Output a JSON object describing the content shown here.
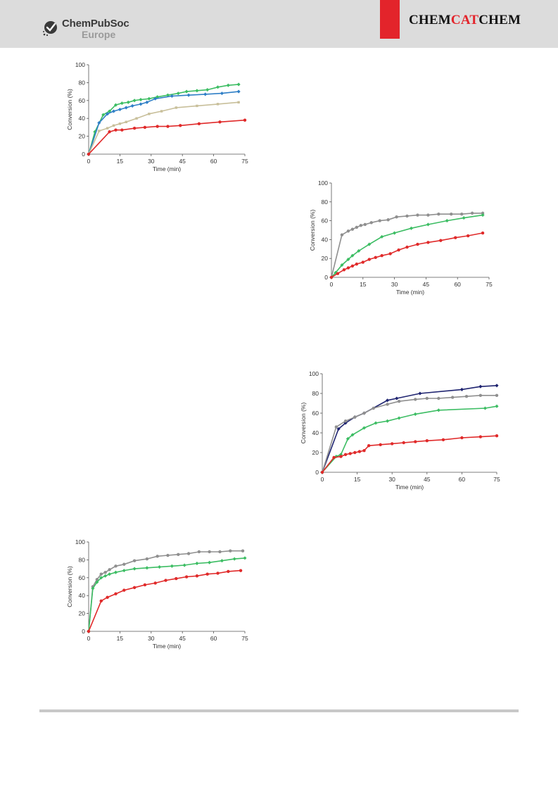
{
  "header": {
    "publisher_name": "ChemPubSoc",
    "publisher_region": "Europe",
    "journal_part1": "CHEM",
    "journal_part2": "CAT",
    "journal_part3": "CHEM"
  },
  "colors": {
    "red": "#e02a2a",
    "green": "#3cbd63",
    "blue": "#2f7fc6",
    "tan": "#c8bf9a",
    "gray": "#8f8f8f",
    "navy": "#1f2470",
    "accent_red": "#e3242b"
  },
  "chart_data": [
    {
      "type": "line",
      "xlabel": "Time (min)",
      "ylabel": "Conversion (%)",
      "xlim": [
        0,
        75
      ],
      "ylim": [
        0,
        100
      ],
      "xticks": [
        0,
        15,
        30,
        45,
        60,
        75
      ],
      "yticks": [
        0,
        20,
        40,
        60,
        80,
        100
      ],
      "grid": false,
      "series": [
        {
          "color": "#3cbd63",
          "marker": "diamond",
          "points": [
            [
              0,
              0
            ],
            [
              3,
              25
            ],
            [
              7,
              44
            ],
            [
              10,
              48
            ],
            [
              13,
              55
            ],
            [
              16,
              57
            ],
            [
              19,
              58
            ],
            [
              22,
              60
            ],
            [
              25,
              61
            ],
            [
              29,
              62
            ],
            [
              33,
              64
            ],
            [
              38,
              66
            ],
            [
              43,
              68
            ],
            [
              47,
              70
            ],
            [
              52,
              71
            ],
            [
              57,
              72
            ],
            [
              62,
              75
            ],
            [
              67,
              77
            ],
            [
              72,
              78
            ]
          ]
        },
        {
          "color": "#2f7fc6",
          "marker": "diamond",
          "points": [
            [
              0,
              0
            ],
            [
              5,
              35
            ],
            [
              9,
              45
            ],
            [
              12,
              48
            ],
            [
              15,
              50
            ],
            [
              18,
              52
            ],
            [
              21,
              54
            ],
            [
              25,
              56
            ],
            [
              28,
              58
            ],
            [
              32,
              62
            ],
            [
              40,
              65
            ],
            [
              48,
              66
            ],
            [
              56,
              67
            ],
            [
              64,
              68
            ],
            [
              72,
              70
            ]
          ]
        },
        {
          "color": "#c8bf9a",
          "marker": "square",
          "points": [
            [
              0,
              0
            ],
            [
              5,
              26
            ],
            [
              9,
              29
            ],
            [
              12,
              32
            ],
            [
              15,
              34
            ],
            [
              18,
              36
            ],
            [
              23,
              40
            ],
            [
              29,
              45
            ],
            [
              35,
              48
            ],
            [
              42,
              52
            ],
            [
              52,
              54
            ],
            [
              62,
              56
            ],
            [
              72,
              58
            ]
          ]
        },
        {
          "color": "#e02a2a",
          "marker": "circle",
          "points": [
            [
              0,
              0
            ],
            [
              10,
              25
            ],
            [
              13,
              27
            ],
            [
              16,
              27
            ],
            [
              22,
              29
            ],
            [
              27,
              30
            ],
            [
              33,
              31
            ],
            [
              38,
              31
            ],
            [
              44,
              32
            ],
            [
              53,
              34
            ],
            [
              63,
              36
            ],
            [
              75,
              38
            ]
          ]
        }
      ]
    },
    {
      "type": "line",
      "xlabel": "Time (min)",
      "ylabel": "Conversion (%)",
      "xlim": [
        0,
        75
      ],
      "ylim": [
        0,
        100
      ],
      "xticks": [
        0,
        15,
        30,
        45,
        60,
        75
      ],
      "yticks": [
        0,
        20,
        40,
        60,
        80,
        100
      ],
      "grid": false,
      "series": [
        {
          "color": "#8f8f8f",
          "marker": "circle",
          "points": [
            [
              0,
              0
            ],
            [
              5,
              45
            ],
            [
              8,
              49
            ],
            [
              10,
              51
            ],
            [
              12,
              53
            ],
            [
              14,
              55
            ],
            [
              16,
              56
            ],
            [
              19,
              58
            ],
            [
              23,
              60
            ],
            [
              27,
              61
            ],
            [
              31,
              64
            ],
            [
              36,
              65
            ],
            [
              41,
              66
            ],
            [
              46,
              66
            ],
            [
              51,
              67
            ],
            [
              57,
              67
            ],
            [
              62,
              67
            ],
            [
              67,
              68
            ],
            [
              72,
              68
            ]
          ]
        },
        {
          "color": "#3cbd63",
          "marker": "diamond",
          "points": [
            [
              0,
              0
            ],
            [
              2,
              5
            ],
            [
              5,
              13
            ],
            [
              8,
              19
            ],
            [
              10,
              23
            ],
            [
              13,
              28
            ],
            [
              18,
              35
            ],
            [
              24,
              43
            ],
            [
              30,
              47
            ],
            [
              38,
              52
            ],
            [
              46,
              56
            ],
            [
              55,
              60
            ],
            [
              63,
              63
            ],
            [
              72,
              66
            ]
          ]
        },
        {
          "color": "#e02a2a",
          "marker": "circle",
          "points": [
            [
              0,
              0
            ],
            [
              3,
              4
            ],
            [
              6,
              8
            ],
            [
              8,
              10
            ],
            [
              10,
              12
            ],
            [
              12,
              14
            ],
            [
              15,
              16
            ],
            [
              18,
              19
            ],
            [
              21,
              21
            ],
            [
              24,
              23
            ],
            [
              28,
              25
            ],
            [
              32,
              29
            ],
            [
              36,
              32
            ],
            [
              41,
              35
            ],
            [
              46,
              37
            ],
            [
              52,
              39
            ],
            [
              59,
              42
            ],
            [
              65,
              44
            ],
            [
              72,
              47
            ]
          ]
        }
      ]
    },
    {
      "type": "line",
      "xlabel": "Time (min)",
      "ylabel": "Conversion (%)",
      "xlim": [
        0,
        75
      ],
      "ylim": [
        0,
        100
      ],
      "xticks": [
        0,
        15,
        30,
        45,
        60,
        75
      ],
      "yticks": [
        0,
        20,
        40,
        60,
        80,
        100
      ],
      "grid": false,
      "series": [
        {
          "color": "#1f2470",
          "marker": "diamond",
          "points": [
            [
              0,
              0
            ],
            [
              7,
              44
            ],
            [
              10,
              50
            ],
            [
              14,
              56
            ],
            [
              18,
              60
            ],
            [
              28,
              73
            ],
            [
              32,
              75
            ],
            [
              42,
              80
            ],
            [
              60,
              84
            ],
            [
              68,
              87
            ],
            [
              75,
              88
            ]
          ]
        },
        {
          "color": "#8f8f8f",
          "marker": "circle",
          "points": [
            [
              0,
              0
            ],
            [
              6,
              46
            ],
            [
              10,
              52
            ],
            [
              14,
              56
            ],
            [
              18,
              60
            ],
            [
              22,
              65
            ],
            [
              28,
              69
            ],
            [
              33,
              72
            ],
            [
              40,
              74
            ],
            [
              45,
              75
            ],
            [
              50,
              75
            ],
            [
              56,
              76
            ],
            [
              62,
              77
            ],
            [
              68,
              78
            ],
            [
              75,
              78
            ]
          ]
        },
        {
          "color": "#3cbd63",
          "marker": "diamond",
          "points": [
            [
              0,
              0
            ],
            [
              6,
              16
            ],
            [
              8,
              18
            ],
            [
              11,
              34
            ],
            [
              13,
              38
            ],
            [
              18,
              45
            ],
            [
              23,
              50
            ],
            [
              28,
              52
            ],
            [
              33,
              55
            ],
            [
              40,
              59
            ],
            [
              50,
              63
            ],
            [
              70,
              65
            ],
            [
              75,
              67
            ]
          ]
        },
        {
          "color": "#e02a2a",
          "marker": "circle",
          "points": [
            [
              0,
              0
            ],
            [
              5,
              15
            ],
            [
              8,
              16
            ],
            [
              10,
              18
            ],
            [
              12,
              19
            ],
            [
              14,
              20
            ],
            [
              16,
              21
            ],
            [
              18,
              22
            ],
            [
              20,
              27
            ],
            [
              25,
              28
            ],
            [
              30,
              29
            ],
            [
              35,
              30
            ],
            [
              40,
              31
            ],
            [
              45,
              32
            ],
            [
              52,
              33
            ],
            [
              60,
              35
            ],
            [
              68,
              36
            ],
            [
              75,
              37
            ]
          ]
        }
      ]
    },
    {
      "type": "line",
      "xlabel": "Time (min)",
      "ylabel": "Conversion (%)",
      "xlim": [
        0,
        75
      ],
      "ylim": [
        0,
        100
      ],
      "xticks": [
        0,
        15,
        30,
        45,
        60,
        75
      ],
      "yticks": [
        0,
        20,
        40,
        60,
        80,
        100
      ],
      "grid": false,
      "series": [
        {
          "color": "#8f8f8f",
          "marker": "circle",
          "points": [
            [
              0,
              0
            ],
            [
              2,
              50
            ],
            [
              4,
              58
            ],
            [
              6,
              64
            ],
            [
              8,
              66
            ],
            [
              10,
              69
            ],
            [
              13,
              73
            ],
            [
              17,
              75
            ],
            [
              22,
              79
            ],
            [
              28,
              81
            ],
            [
              33,
              84
            ],
            [
              38,
              85
            ],
            [
              43,
              86
            ],
            [
              48,
              87
            ],
            [
              53,
              89
            ],
            [
              58,
              89
            ],
            [
              63,
              89
            ],
            [
              68,
              90
            ],
            [
              74,
              90
            ]
          ]
        },
        {
          "color": "#3cbd63",
          "marker": "diamond",
          "points": [
            [
              0,
              0
            ],
            [
              2,
              48
            ],
            [
              4,
              55
            ],
            [
              6,
              60
            ],
            [
              8,
              62
            ],
            [
              10,
              64
            ],
            [
              13,
              66
            ],
            [
              17,
              68
            ],
            [
              22,
              70
            ],
            [
              28,
              71
            ],
            [
              34,
              72
            ],
            [
              40,
              73
            ],
            [
              46,
              74
            ],
            [
              52,
              76
            ],
            [
              58,
              77
            ],
            [
              64,
              79
            ],
            [
              70,
              81
            ],
            [
              75,
              82
            ]
          ]
        },
        {
          "color": "#e02a2a",
          "marker": "circle",
          "points": [
            [
              0,
              0
            ],
            [
              6,
              34
            ],
            [
              9,
              38
            ],
            [
              13,
              42
            ],
            [
              17,
              46
            ],
            [
              22,
              49
            ],
            [
              27,
              52
            ],
            [
              32,
              54
            ],
            [
              37,
              57
            ],
            [
              42,
              59
            ],
            [
              47,
              61
            ],
            [
              52,
              62
            ],
            [
              57,
              64
            ],
            [
              62,
              65
            ],
            [
              67,
              67
            ],
            [
              73,
              68
            ]
          ]
        }
      ]
    }
  ]
}
